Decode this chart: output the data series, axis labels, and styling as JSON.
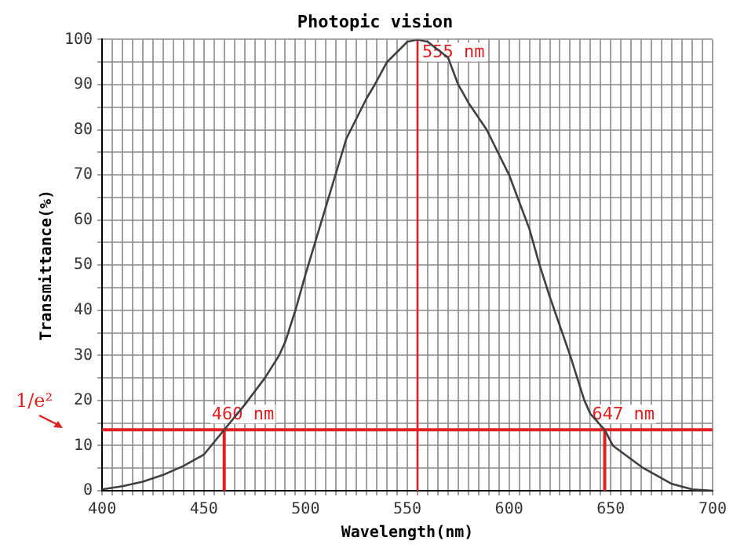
{
  "chart_data": {
    "type": "line",
    "title": "Photopic vision",
    "xlabel": "Wavelength(nm)",
    "ylabel": "Transmittance(%)",
    "series": [
      {
        "color": "#404040",
        "x": [
          400,
          410,
          420,
          430,
          440,
          450,
          460,
          470,
          480,
          487,
          490,
          495,
          500,
          510,
          520,
          530,
          534,
          540,
          550,
          555,
          560,
          570,
          575,
          580,
          589,
          600,
          610,
          615,
          620,
          630,
          637,
          640,
          647,
          651,
          660,
          666,
          670,
          680,
          690,
          700
        ],
        "values": [
          0.3,
          1,
          2,
          3.5,
          5.5,
          8,
          13.5,
          19,
          25,
          30,
          33,
          40,
          48,
          63,
          78,
          87,
          90,
          95,
          99.5,
          100,
          99.5,
          96,
          90,
          86,
          80,
          70,
          58,
          50,
          43,
          30,
          20,
          17,
          13.5,
          10,
          7,
          5,
          4,
          1.5,
          0.3,
          0
        ]
      }
    ],
    "xlim": [
      400,
      700
    ],
    "xticks": [
      400,
      {
        "value": 405,
        "label": null
      },
      {
        "value": 410,
        "label": null
      },
      {
        "value": 415,
        "label": null
      },
      {
        "value": 420,
        "label": null
      },
      {
        "value": 425,
        "label": null
      },
      {
        "value": 430,
        "label": null
      },
      {
        "value": 435,
        "label": null
      },
      {
        "value": 440,
        "label": null
      },
      {
        "value": 445,
        "label": null
      },
      450,
      {
        "value": 455,
        "label": null
      },
      {
        "value": 460,
        "label": null
      },
      {
        "value": 465,
        "label": null
      },
      {
        "value": 470,
        "label": null
      },
      {
        "value": 475,
        "label": null
      },
      {
        "value": 480,
        "label": null
      },
      {
        "value": 485,
        "label": null
      },
      {
        "value": 490,
        "label": null
      },
      {
        "value": 495,
        "label": null
      },
      500,
      {
        "value": 505,
        "label": null
      },
      {
        "value": 510,
        "label": null
      },
      {
        "value": 515,
        "label": null
      },
      {
        "value": 520,
        "label": null
      },
      {
        "value": 525,
        "label": null
      },
      {
        "value": 530,
        "label": null
      },
      {
        "value": 535,
        "label": null
      },
      {
        "value": 540,
        "label": null
      },
      {
        "value": 545,
        "label": null
      },
      550,
      {
        "value": 555,
        "label": null
      },
      {
        "value": 560,
        "label": null
      },
      {
        "value": 565,
        "label": null
      },
      {
        "value": 570,
        "label": null
      },
      {
        "value": 575,
        "label": null
      },
      {
        "value": 580,
        "label": null
      },
      {
        "value": 585,
        "label": null
      },
      {
        "value": 590,
        "label": null
      },
      {
        "value": 595,
        "label": null
      },
      600,
      {
        "value": 605,
        "label": null
      },
      {
        "value": 610,
        "label": null
      },
      {
        "value": 615,
        "label": null
      },
      {
        "value": 620,
        "label": null
      },
      {
        "value": 625,
        "label": null
      },
      {
        "value": 630,
        "label": null
      },
      {
        "value": 635,
        "label": null
      },
      {
        "value": 640,
        "label": null
      },
      {
        "value": 645,
        "label": null
      },
      650,
      {
        "value": 655,
        "label": null
      },
      {
        "value": 660,
        "label": null
      },
      {
        "value": 665,
        "label": null
      },
      {
        "value": 670,
        "label": null
      },
      {
        "value": 675,
        "label": null
      },
      {
        "value": 680,
        "label": null
      },
      {
        "value": 685,
        "label": null
      },
      {
        "value": 690,
        "label": null
      },
      {
        "value": 695,
        "label": null
      },
      700
    ],
    "ylim": [
      0,
      100
    ],
    "yticks": [
      0,
      {
        "value": 5,
        "label": null
      },
      10,
      {
        "value": 15,
        "label": null
      },
      20,
      {
        "value": 25,
        "label": null
      },
      30,
      {
        "value": 35,
        "label": null
      },
      40,
      {
        "value": 45,
        "label": null
      },
      50,
      {
        "value": 55,
        "label": null
      },
      60,
      {
        "value": 65,
        "label": null
      },
      70,
      {
        "value": 75,
        "label": null
      },
      80,
      {
        "value": 85,
        "label": null
      },
      90,
      {
        "value": 95,
        "label": null
      },
      100
    ],
    "ref_lines": [
      {
        "axis": "x",
        "value": 555,
        "label": "555 nm",
        "color": "#e02020"
      },
      {
        "axis": "y",
        "value": 13.5,
        "label": "1/e²",
        "color": "#e02020"
      }
    ],
    "annotations": [
      {
        "text": "460 nm",
        "x": 460,
        "y": 13.5
      },
      {
        "text": "647 nm",
        "x": 647,
        "y": 13.5
      }
    ],
    "grid": true,
    "legend": false,
    "marker": "none",
    "line_style": "solid"
  }
}
